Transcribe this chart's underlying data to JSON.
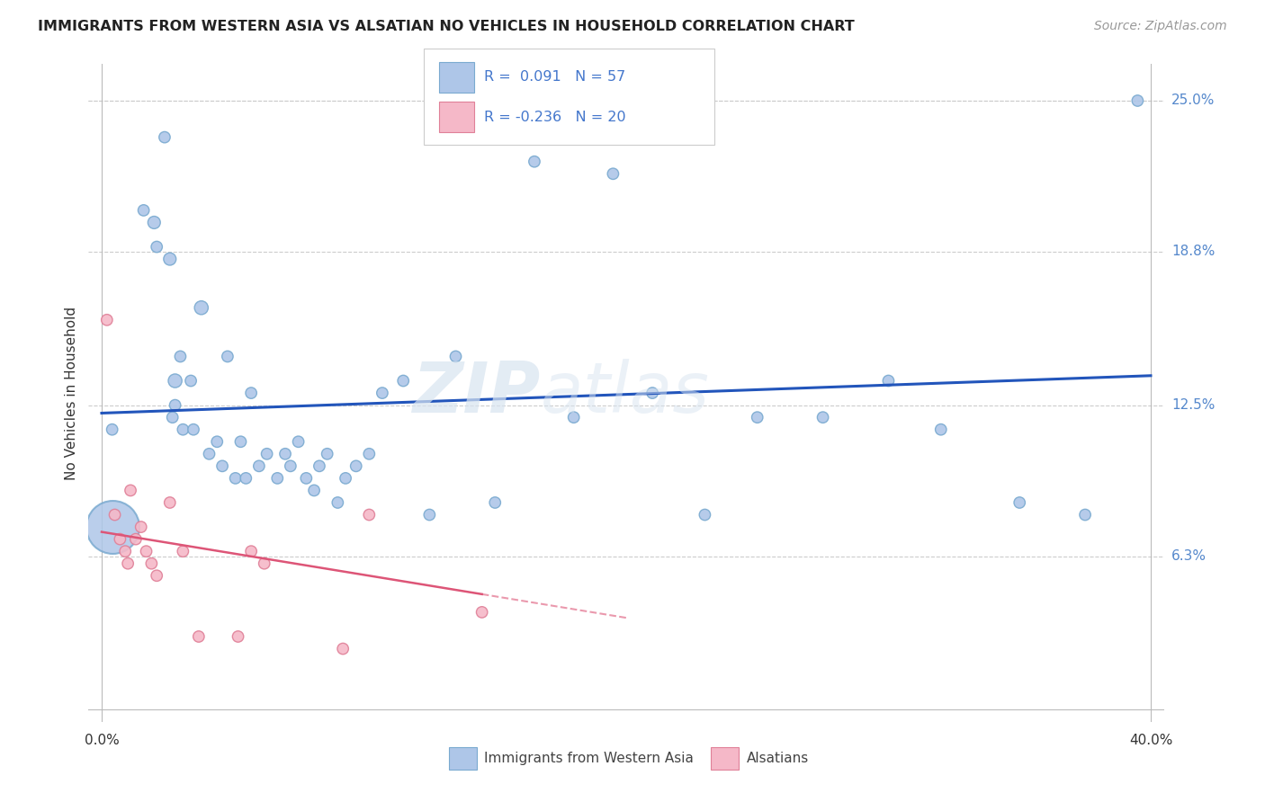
{
  "title": "IMMIGRANTS FROM WESTERN ASIA VS ALSATIAN NO VEHICLES IN HOUSEHOLD CORRELATION CHART",
  "source": "Source: ZipAtlas.com",
  "ylabel": "No Vehicles in Household",
  "legend_label1": "Immigrants from Western Asia",
  "legend_label2": "Alsatians",
  "r1": 0.091,
  "n1": 57,
  "r2": -0.236,
  "n2": 20,
  "blue_color": "#aec6e8",
  "blue_edge": "#7aaad0",
  "pink_color": "#f5b8c8",
  "pink_edge": "#e08098",
  "line_blue": "#2255bb",
  "line_pink": "#dd5577",
  "watermark_zip": "ZIP",
  "watermark_atlas": "atlas",
  "ytick_vals": [
    0.0,
    6.3,
    12.5,
    18.8,
    25.0
  ],
  "ytick_labels": [
    "",
    "6.3%",
    "12.5%",
    "18.8%",
    "25.0%"
  ],
  "xmin": 0.0,
  "xmax": 40.0,
  "ymin": 0.0,
  "ymax": 25.0,
  "blue_x": [
    0.4,
    1.6,
    2.0,
    2.1,
    2.4,
    2.6,
    2.7,
    2.8,
    2.8,
    3.0,
    3.1,
    3.4,
    3.5,
    3.8,
    4.1,
    4.4,
    4.6,
    4.8,
    5.1,
    5.3,
    5.5,
    5.7,
    6.0,
    6.3,
    6.7,
    7.0,
    7.2,
    7.5,
    7.8,
    8.1,
    8.3,
    8.6,
    9.0,
    9.3,
    9.7,
    10.2,
    10.7,
    11.5,
    12.5,
    13.5,
    15.0,
    16.5,
    18.0,
    19.5,
    21.0,
    23.0,
    25.0,
    27.5,
    30.0,
    32.0,
    35.0,
    37.5,
    39.5
  ],
  "blue_y": [
    11.5,
    20.5,
    20.0,
    19.0,
    23.5,
    18.5,
    12.0,
    12.5,
    13.5,
    14.5,
    11.5,
    13.5,
    11.5,
    16.5,
    10.5,
    11.0,
    10.0,
    14.5,
    9.5,
    11.0,
    9.5,
    13.0,
    10.0,
    10.5,
    9.5,
    10.5,
    10.0,
    11.0,
    9.5,
    9.0,
    10.0,
    10.5,
    8.5,
    9.5,
    10.0,
    10.5,
    13.0,
    13.5,
    8.0,
    14.5,
    8.5,
    22.5,
    12.0,
    22.0,
    13.0,
    8.0,
    12.0,
    12.0,
    13.5,
    11.5,
    8.5,
    8.0,
    25.0
  ],
  "blue_sizes": [
    80,
    80,
    100,
    80,
    80,
    100,
    80,
    80,
    120,
    80,
    80,
    80,
    80,
    120,
    80,
    80,
    80,
    80,
    80,
    80,
    80,
    80,
    80,
    80,
    80,
    80,
    80,
    80,
    80,
    80,
    80,
    80,
    80,
    80,
    80,
    80,
    80,
    80,
    80,
    80,
    80,
    80,
    80,
    80,
    80,
    80,
    80,
    80,
    80,
    80,
    80,
    80,
    80
  ],
  "big_blue_x": [
    0.4
  ],
  "big_blue_y": [
    7.5
  ],
  "big_blue_size": [
    1800
  ],
  "pink_x": [
    0.2,
    0.5,
    0.7,
    0.9,
    1.0,
    1.1,
    1.3,
    1.5,
    1.7,
    1.9,
    2.1,
    2.6,
    3.1,
    3.7,
    5.2,
    5.7,
    6.2,
    9.2,
    10.2,
    14.5
  ],
  "pink_y": [
    16.0,
    8.0,
    7.0,
    6.5,
    6.0,
    9.0,
    7.0,
    7.5,
    6.5,
    6.0,
    5.5,
    8.5,
    6.5,
    3.0,
    3.0,
    6.5,
    6.0,
    2.5,
    8.0,
    4.0
  ],
  "pink_sizes": [
    80,
    80,
    80,
    80,
    80,
    80,
    80,
    80,
    80,
    80,
    80,
    80,
    80,
    80,
    80,
    80,
    80,
    80,
    80,
    80
  ],
  "pink_solid_end": 14.5,
  "pink_dash_end": 20.0
}
